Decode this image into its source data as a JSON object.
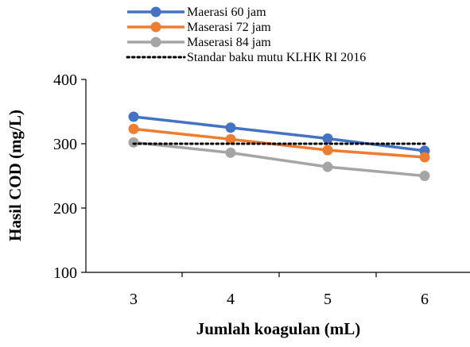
{
  "chart_data": {
    "type": "line",
    "title": "",
    "xlabel": "Jumlah koagulan (mL)",
    "ylabel": "Hasil COD (mg/L)",
    "x": [
      3,
      4,
      5,
      6
    ],
    "xticks": [
      "3",
      "4",
      "5",
      "6"
    ],
    "ylim": [
      100,
      400
    ],
    "yticks": [
      "100",
      "200",
      "300",
      "400"
    ],
    "grid": false,
    "legend_position": "top",
    "series": [
      {
        "name": "Maerasi 60 jam",
        "values": [
          342,
          325,
          308,
          289
        ],
        "color": "#4472c4",
        "style": "line-marker"
      },
      {
        "name": "Maserasi 72 jam",
        "values": [
          323,
          307,
          290,
          279
        ],
        "color": "#ed7d31",
        "style": "line-marker"
      },
      {
        "name": "Maserasi 84 jam",
        "values": [
          302,
          286,
          264,
          250
        ],
        "color": "#a5a5a5",
        "style": "line-marker"
      },
      {
        "name": "Standar baku mutu KLHK RI 2016",
        "values": [
          300,
          300,
          300,
          300
        ],
        "color": "#000000",
        "style": "dotted"
      }
    ]
  }
}
